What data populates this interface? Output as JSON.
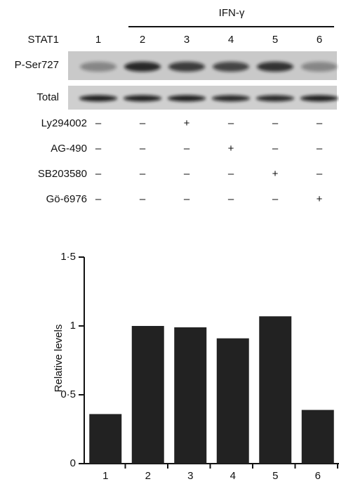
{
  "blot": {
    "title": "IFN-γ",
    "lane_header": "STAT1",
    "lanes": [
      "1",
      "2",
      "3",
      "4",
      "5",
      "6"
    ],
    "rows": [
      "P-Ser727",
      "Total"
    ],
    "treatments": [
      {
        "name": "Ly294002",
        "signs": [
          "–",
          "–",
          "+",
          "–",
          "–",
          "–"
        ]
      },
      {
        "name": "AG-490",
        "signs": [
          "–",
          "–",
          "–",
          "+",
          "–",
          "–"
        ]
      },
      {
        "name": "SB203580",
        "signs": [
          "–",
          "–",
          "–",
          "–",
          "+",
          "–"
        ]
      },
      {
        "name": "Gö-6976",
        "signs": [
          "–",
          "–",
          "–",
          "–",
          "–",
          "+"
        ]
      }
    ]
  },
  "chart_data": {
    "type": "bar",
    "y_label": "Relative levels",
    "categories": [
      "1",
      "2",
      "3",
      "4",
      "5",
      "6"
    ],
    "values": [
      0.36,
      1.0,
      0.99,
      0.91,
      1.07,
      0.39
    ],
    "color": "#222222",
    "ylim": [
      0,
      1.5
    ],
    "yticks": [
      0,
      {
        "value": 0.5,
        "label": "0·5"
      },
      1,
      {
        "value": 1.5,
        "label": "1·5"
      }
    ],
    "grid": false
  }
}
